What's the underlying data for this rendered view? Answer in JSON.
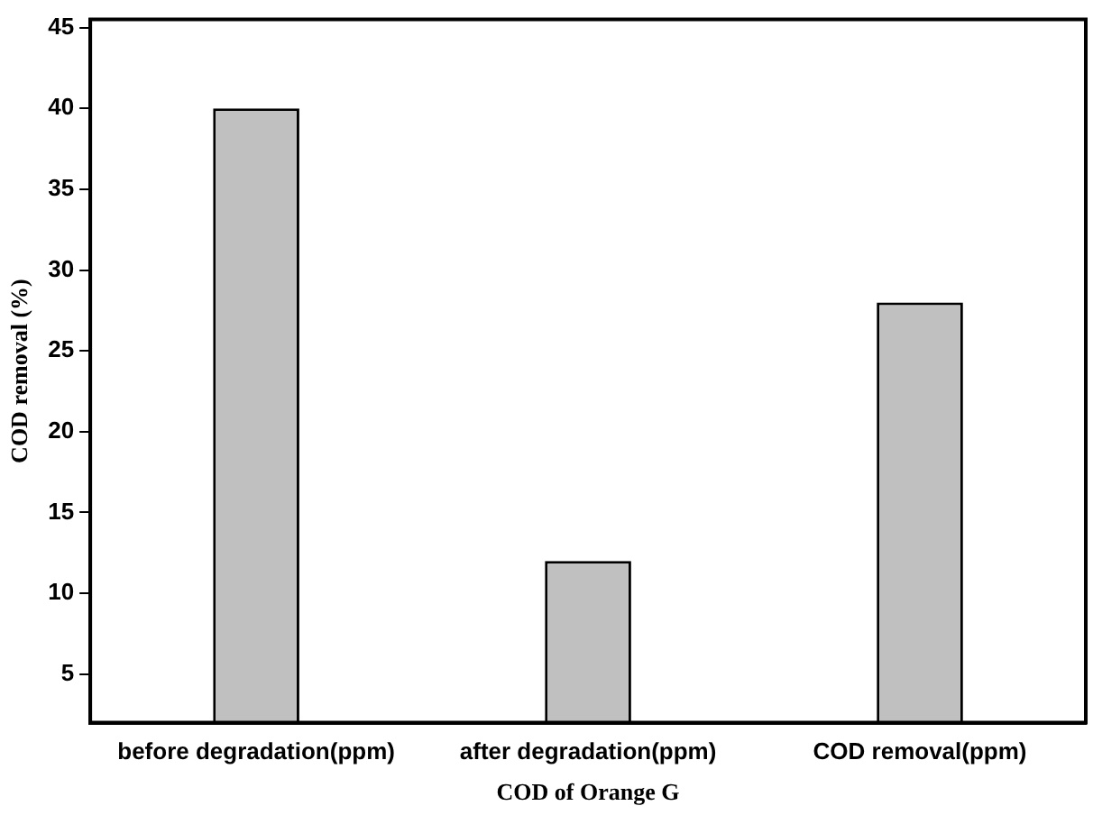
{
  "chart_data": {
    "type": "bar",
    "xlabel": "COD of Orange G",
    "ylabel": "COD removal (%)",
    "categories": [
      "before degradation(ppm)",
      "after degradation(ppm)",
      "COD removal(ppm)"
    ],
    "values": [
      40,
      12,
      28
    ],
    "color": "#c0c0c0",
    "ylim": [
      2,
      45.5
    ],
    "yticks": [
      5,
      10,
      15,
      20,
      25,
      30,
      35,
      40,
      45
    ],
    "grid": false,
    "legend": false
  }
}
